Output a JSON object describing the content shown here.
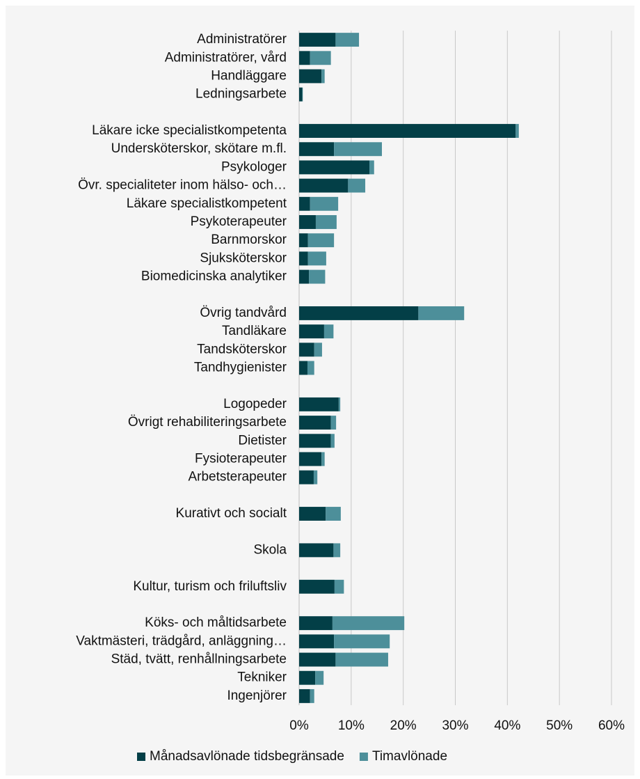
{
  "chart_data": {
    "type": "stacked-bar-horizontal",
    "categories": [
      "Administratörer",
      "Administratörer, vård",
      "Handläggare",
      "Ledningsarbete",
      null,
      "Läkare icke specialistkompetenta",
      "Undersköterskor, skötare m.fl.",
      "Psykologer",
      "Övr. specialiteter inom hälso- och…",
      "Läkare specialistkompetent",
      "Psykoterapeuter",
      "Barnmorskor",
      "Sjuksköterskor",
      "Biomedicinska analytiker",
      null,
      "Övrig tandvård",
      "Tandläkare",
      "Tandsköterskor",
      "Tandhygienister",
      null,
      "Logopeder",
      "Övrigt rehabiliteringsarbete",
      "Dietister",
      "Fysioterapeuter",
      "Arbetsterapeuter",
      null,
      "Kurativt och socialt",
      null,
      "Skola",
      null,
      "Kultur, turism och friluftsliv",
      null,
      "Köks- och måltidsarbete",
      "Vaktmästeri, trädgård, anläggning…",
      "Städ, tvätt, renhållningsarbete",
      "Tekniker",
      "Ingenjörer"
    ],
    "series": [
      {
        "name": "Månadsavlönade tidsbegränsade",
        "color": "#033f47",
        "values": [
          7.0,
          2.1,
          4.3,
          0.6,
          null,
          41.6,
          6.7,
          13.5,
          9.4,
          2.1,
          3.2,
          1.7,
          1.7,
          1.9,
          null,
          22.9,
          4.8,
          2.9,
          1.6,
          null,
          7.6,
          6.1,
          6.1,
          4.3,
          2.8,
          null,
          5.1,
          null,
          6.6,
          null,
          6.8,
          null,
          6.4,
          6.7,
          7.0,
          3.1,
          2.1
        ]
      },
      {
        "name": "Timavlönade",
        "color": "#4d8f9a",
        "values": [
          4.5,
          4.0,
          0.6,
          0.1,
          null,
          0.6,
          9.2,
          0.9,
          3.3,
          5.4,
          4.0,
          5.0,
          3.5,
          3.1,
          null,
          8.8,
          1.8,
          1.5,
          1.3,
          null,
          0.3,
          1.0,
          0.7,
          0.6,
          0.7,
          null,
          2.9,
          null,
          1.3,
          null,
          1.8,
          null,
          13.8,
          10.7,
          10.1,
          1.6,
          0.8
        ]
      }
    ],
    "xlim": [
      0,
      60
    ],
    "xticks": [
      {
        "value": 0,
        "label": "0%"
      },
      {
        "value": 10,
        "label": "10%"
      },
      {
        "value": 20,
        "label": "20%"
      },
      {
        "value": 30,
        "label": "30%"
      },
      {
        "value": 40,
        "label": "40%"
      },
      {
        "value": 50,
        "label": "50%"
      },
      {
        "value": 60,
        "label": "60%"
      }
    ],
    "grid": true,
    "legend": "bottom"
  }
}
